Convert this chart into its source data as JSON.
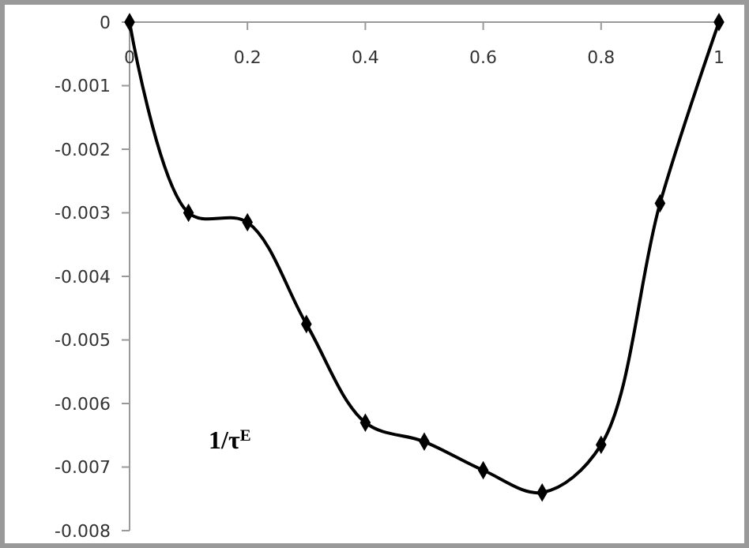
{
  "chart_data": {
    "type": "line",
    "x": [
      0,
      0.1,
      0.2,
      0.3,
      0.4,
      0.5,
      0.6,
      0.7,
      0.8,
      0.9,
      1
    ],
    "series": [
      {
        "color": "#000000",
        "values": [
          0,
          -0.003,
          -0.00315,
          -0.00475,
          -0.0063,
          -0.0066,
          -0.00705,
          -0.0074,
          -0.00665,
          -0.00285,
          0
        ]
      }
    ],
    "xlim": [
      0,
      1
    ],
    "xticks": [
      0,
      0.2,
      0.4,
      0.6,
      0.8,
      1
    ],
    "ylim": [
      -0.008,
      0
    ],
    "yticks": [
      -0.008,
      -0.007,
      -0.006,
      -0.005,
      -0.004,
      -0.003,
      -0.002,
      -0.001,
      0
    ],
    "marker": "diamond",
    "line_style": "solid",
    "grid": false,
    "annotations": [
      "1/τ$^{E}$"
    ]
  }
}
